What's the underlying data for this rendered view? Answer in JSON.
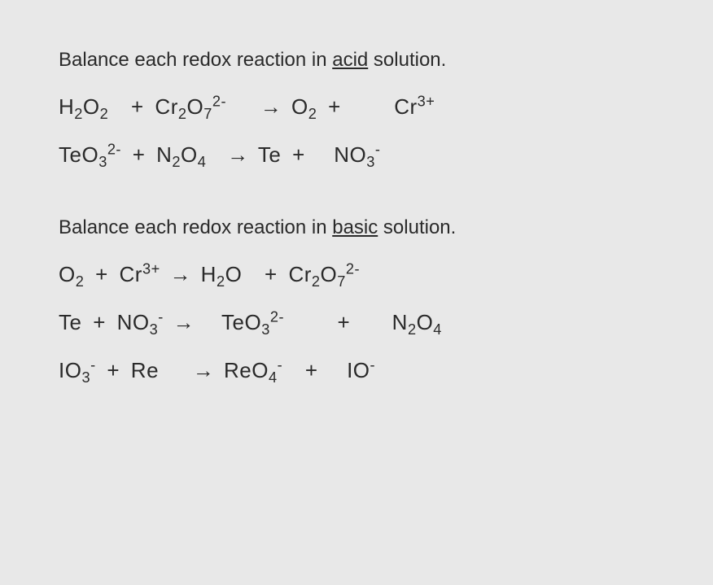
{
  "colors": {
    "background": "#e8e8e8",
    "text": "#2a2a2a"
  },
  "typography": {
    "prompt_fontsize": 24,
    "equation_fontsize": 26,
    "font_family": "Arial"
  },
  "sections": [
    {
      "prompt_before": "Balance each redox reaction in ",
      "prompt_underlined": "acid",
      "prompt_after": " solution.",
      "equations": [
        {
          "reactants": [
            {
              "base": "H",
              "sub1": "2",
              "base2": "O",
              "sub2": "2"
            },
            {
              "base": "Cr",
              "sub1": "2",
              "base2": "O",
              "sub2": "7",
              "sup": "2-"
            }
          ],
          "products": [
            {
              "base": "O",
              "sub1": "2"
            },
            {
              "base": "Cr",
              "sup": "3+"
            }
          ]
        },
        {
          "reactants": [
            {
              "base": "TeO",
              "sub1": "3",
              "sup": "2-"
            },
            {
              "base": "N",
              "sub1": "2",
              "base2": "O",
              "sub2": "4"
            }
          ],
          "products": [
            {
              "base": "Te"
            },
            {
              "base": "NO",
              "sub1": "3",
              "sup": "-"
            }
          ]
        }
      ]
    },
    {
      "prompt_before": "Balance each redox reaction in ",
      "prompt_underlined": "basic",
      "prompt_after": " solution.",
      "equations": [
        {
          "reactants": [
            {
              "base": "O",
              "sub1": "2"
            },
            {
              "base": "Cr",
              "sup": "3+"
            }
          ],
          "products": [
            {
              "base": "H",
              "sub1": "2",
              "base2": "O"
            },
            {
              "base": "Cr",
              "sub1": "2",
              "base2": "O",
              "sub2": "7",
              "sup": "2-"
            }
          ]
        },
        {
          "reactants": [
            {
              "base": "Te"
            },
            {
              "base": "NO",
              "sub1": "3",
              "sup": "-"
            }
          ],
          "products": [
            {
              "base": "TeO",
              "sub1": "3",
              "sup": "2-"
            },
            {
              "base": "N",
              "sub1": "2",
              "base2": "O",
              "sub2": "4"
            }
          ]
        },
        {
          "reactants": [
            {
              "base": "IO",
              "sub1": "3",
              "sup": "-"
            },
            {
              "base": "Re"
            }
          ],
          "products": [
            {
              "base": "ReO",
              "sub1": "4",
              "sup": "-"
            },
            {
              "base": "IO",
              "sup": "-"
            }
          ]
        }
      ]
    }
  ]
}
